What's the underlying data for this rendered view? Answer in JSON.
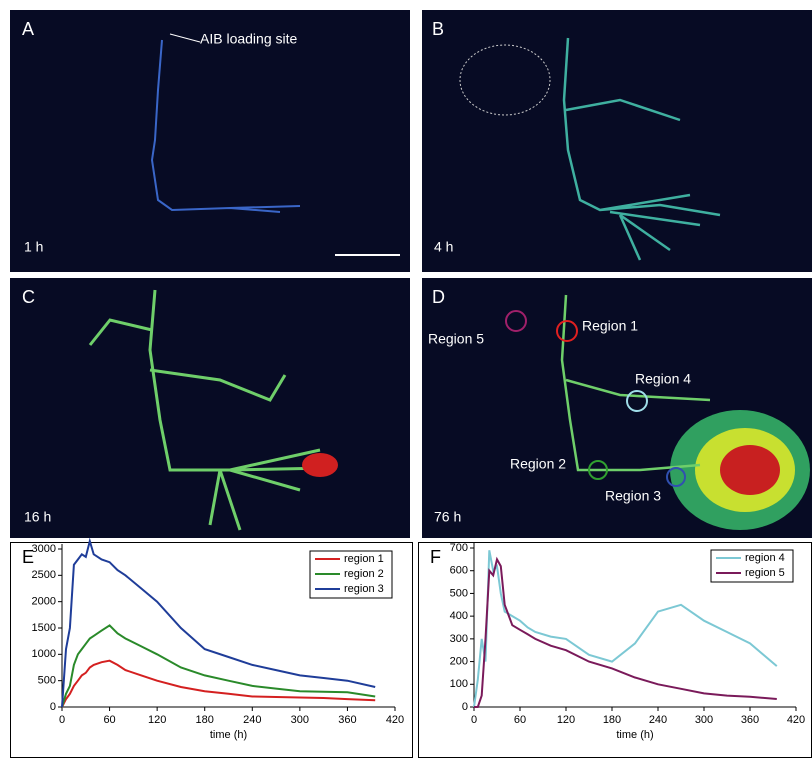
{
  "panels": [
    {
      "label": "A",
      "annotation": "AIB loading site",
      "time": "1 h"
    },
    {
      "label": "B",
      "time": "4 h"
    },
    {
      "label": "C",
      "time": "16 h"
    },
    {
      "label": "D",
      "time": "76 h",
      "regions": [
        "Region 1",
        "Region 2",
        "Region 3",
        "Region 4",
        "Region 5"
      ]
    }
  ],
  "chart_data": [
    {
      "type": "line",
      "panel_label": "E",
      "xlabel": "time (h)",
      "x": [
        0,
        5,
        10,
        15,
        20,
        25,
        30,
        35,
        40,
        50,
        60,
        70,
        80,
        100,
        120,
        150,
        180,
        210,
        240,
        270,
        300,
        330,
        360,
        395
      ],
      "xlim": [
        0,
        420
      ],
      "xticks": [
        0,
        60,
        120,
        180,
        240,
        300,
        360,
        420
      ],
      "ylim": [
        0,
        3000
      ],
      "yticks": [
        0,
        500,
        1000,
        1500,
        2000,
        2500,
        3000
      ],
      "legend": "upper right",
      "series": [
        {
          "name": "region 1",
          "color": "#d42020",
          "values": [
            0,
            150,
            250,
            400,
            500,
            600,
            650,
            750,
            800,
            850,
            880,
            800,
            700,
            600,
            500,
            380,
            300,
            250,
            200,
            190,
            180,
            170,
            150,
            130
          ]
        },
        {
          "name": "region 2",
          "color": "#2a8a2a",
          "values": [
            0,
            250,
            400,
            800,
            1000,
            1100,
            1200,
            1300,
            1350,
            1450,
            1550,
            1400,
            1300,
            1150,
            1000,
            750,
            600,
            500,
            400,
            350,
            300,
            290,
            280,
            200
          ]
        },
        {
          "name": "region 3",
          "color": "#1f3d99",
          "values": [
            0,
            1100,
            1500,
            2700,
            2800,
            2900,
            2850,
            3150,
            2900,
            2800,
            2750,
            2600,
            2500,
            2250,
            2000,
            1500,
            1100,
            950,
            800,
            700,
            600,
            550,
            500,
            380
          ]
        }
      ]
    },
    {
      "type": "line",
      "panel_label": "F",
      "xlabel": "time (h)",
      "x": [
        0,
        5,
        10,
        15,
        20,
        25,
        30,
        35,
        40,
        50,
        60,
        70,
        80,
        100,
        120,
        150,
        180,
        210,
        240,
        270,
        300,
        330,
        360,
        395
      ],
      "xlim": [
        0,
        420
      ],
      "xticks": [
        0,
        60,
        120,
        180,
        240,
        300,
        360,
        420
      ],
      "ylim": [
        0,
        700
      ],
      "yticks": [
        0,
        100,
        200,
        300,
        400,
        500,
        600,
        700
      ],
      "legend": "upper right",
      "series": [
        {
          "name": "region 4",
          "color": "#7cc8d4",
          "values": [
            0,
            120,
            300,
            200,
            690,
            600,
            620,
            500,
            420,
            400,
            380,
            350,
            330,
            310,
            300,
            230,
            200,
            280,
            420,
            450,
            380,
            330,
            280,
            180
          ]
        },
        {
          "name": "region 5",
          "color": "#7a1a5a",
          "values": [
            0,
            0,
            50,
            300,
            600,
            580,
            650,
            620,
            450,
            360,
            340,
            320,
            300,
            270,
            250,
            200,
            170,
            130,
            100,
            80,
            60,
            50,
            45,
            35
          ]
        }
      ]
    }
  ]
}
